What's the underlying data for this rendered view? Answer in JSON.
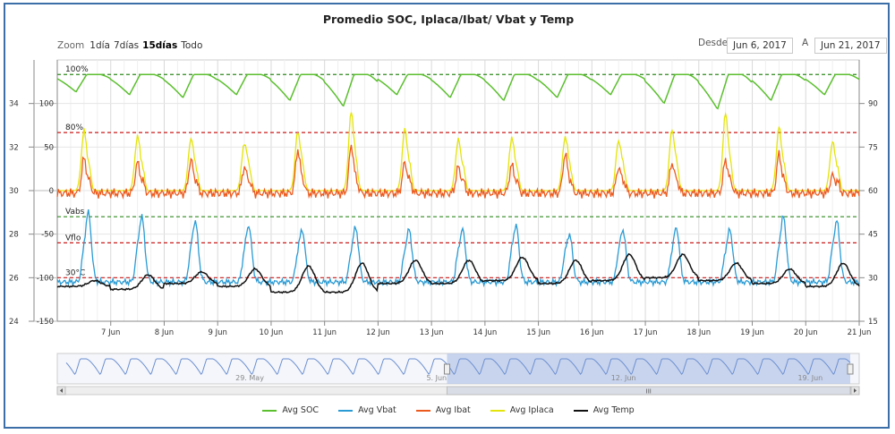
{
  "title": "Promedio SOC, Iplaca/Ibat/ Vbat y Temp",
  "zoom": {
    "label": "Zoom",
    "buttons": [
      "1día",
      "7días",
      "15días",
      "Todo"
    ],
    "active": "15días"
  },
  "range": {
    "from_label": "Desde",
    "from_value": "Jun 6, 2017",
    "to_label": "A",
    "to_value": "Jun 21, 2017"
  },
  "colors": {
    "soc": "#5bbf2e",
    "vbat": "#2a9bd4",
    "ibat": "#ec5a1e",
    "iplaca": "#e4e40a",
    "temp": "#111111",
    "navigator_line": "#6c8fd0",
    "navigator_fill": "#b9c8ea"
  },
  "chart_data": {
    "type": "line",
    "title": "Promedio SOC, Iplaca/Ibat/ Vbat y Temp",
    "x": {
      "type": "datetime",
      "range": [
        "2017-06-06",
        "2017-06-21"
      ],
      "tick_labels": [
        "7 Jun",
        "8 Jun",
        "9 Jun",
        "10 Jun",
        "11 Jun",
        "12 Jun",
        "13 Jun",
        "14 Jun",
        "15 Jun",
        "16 Jun",
        "17 Jun",
        "18 Jun",
        "19 Jun",
        "20 Jun",
        "21 Jun"
      ]
    },
    "y_axes": [
      {
        "id": "vbat_axis",
        "side": "left-outer",
        "ticks": [
          24,
          26,
          28,
          30,
          32,
          34
        ],
        "range": [
          24,
          36
        ]
      },
      {
        "id": "current_axis",
        "side": "left-inner",
        "ticks": [
          -150,
          -100,
          -50,
          0,
          50,
          100
        ],
        "range": [
          -150,
          150
        ]
      },
      {
        "id": "soc_axis",
        "side": "right",
        "ticks": [
          15,
          30,
          45,
          60,
          75,
          90
        ],
        "range": [
          15,
          105
        ]
      }
    ],
    "plot_lines": [
      {
        "label": "100%",
        "axis": "soc_axis",
        "value": 100,
        "color": "#2f8a1e"
      },
      {
        "label": "80%",
        "axis": "soc_axis",
        "value": 80,
        "color": "#cc1a1a"
      },
      {
        "label": "Vabs",
        "axis": "vbat_axis",
        "value": 28.8,
        "color": "#2f8a1e"
      },
      {
        "label": "Vflo",
        "axis": "vbat_axis",
        "value": 27.6,
        "color": "#cc1a1a"
      },
      {
        "label": "30°C",
        "axis": "soc_axis",
        "value": 30,
        "color": "#cc1a1a"
      }
    ],
    "grid": true,
    "legend_position": "bottom",
    "series": [
      {
        "name": "Avg SOC",
        "axis": "soc_axis",
        "daily_max": 100,
        "daily_min": [
          94,
          93,
          92,
          93,
          91,
          89,
          93,
          92,
          91,
          92,
          93,
          90,
          88,
          91,
          93
        ]
      },
      {
        "name": "Avg Vbat",
        "axis": "vbat_axis",
        "night": 25.8,
        "day_peak": [
          29.0,
          28.8,
          28.6,
          28.4,
          28.2,
          28.3,
          28.2,
          28.2,
          28.4,
          28.0,
          28.2,
          28.3,
          28.2,
          28.8,
          28.6
        ]
      },
      {
        "name": "Avg Ibat",
        "axis": "current_axis",
        "night": -3,
        "day_peak": [
          40,
          35,
          38,
          30,
          50,
          55,
          35,
          30,
          32,
          45,
          30,
          35,
          38,
          45,
          20
        ]
      },
      {
        "name": "Avg Iplaca",
        "axis": "current_axis",
        "night": 0,
        "day_peak": [
          68,
          62,
          60,
          55,
          68,
          90,
          70,
          58,
          60,
          62,
          58,
          70,
          88,
          72,
          55
        ]
      },
      {
        "name": "Avg Temp",
        "axis": "soc_axis",
        "daily_max": [
          29,
          31,
          32,
          33,
          34,
          35,
          36,
          36,
          37,
          36,
          38,
          38,
          35,
          33,
          35
        ],
        "daily_min": [
          27,
          26,
          28,
          27,
          25,
          25,
          28,
          28,
          29,
          28,
          29,
          30,
          29,
          28,
          27
        ]
      }
    ],
    "navigator": {
      "tick_labels": [
        "29. May",
        "5. Jun",
        "12. Jun",
        "19. Jun"
      ],
      "scrollbar_label": "III"
    }
  }
}
